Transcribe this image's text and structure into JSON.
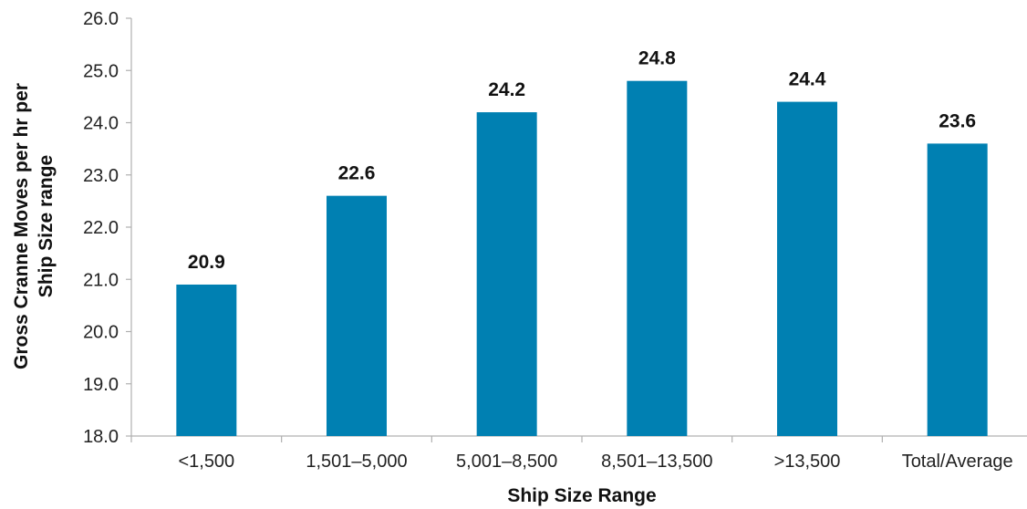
{
  "chart_data": {
    "type": "bar",
    "title": "",
    "xlabel": "Ship Size Range",
    "ylabel_lines": [
      "Gross Cranne Moves per hr per",
      "Ship Size range"
    ],
    "categories": [
      "<1,500",
      "1,501–5,000",
      "5,001–8,500",
      "8,501–13,500",
      ">13,500",
      "Total/Average"
    ],
    "values": [
      20.9,
      22.6,
      24.2,
      24.8,
      24.4,
      23.6
    ],
    "value_labels": [
      "20.9",
      "22.6",
      "24.2",
      "24.8",
      "24.4",
      "23.6"
    ],
    "ylim": [
      18.0,
      26.0
    ],
    "yticks": [
      "18.0",
      "19.0",
      "20.0",
      "21.0",
      "22.0",
      "23.0",
      "24.0",
      "25.0",
      "26.0"
    ],
    "grid": false,
    "legend": "none",
    "bar_color": "#0080B2"
  }
}
